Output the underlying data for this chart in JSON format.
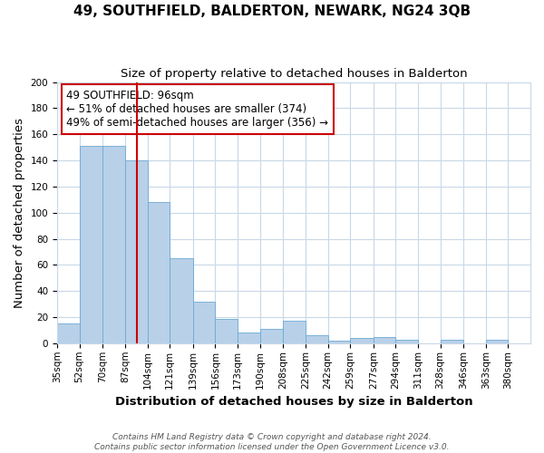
{
  "title": "49, SOUTHFIELD, BALDERTON, NEWARK, NG24 3QB",
  "subtitle": "Size of property relative to detached houses in Balderton",
  "xlabel": "Distribution of detached houses by size in Balderton",
  "ylabel": "Number of detached properties",
  "bar_values": [
    15,
    151,
    151,
    140,
    108,
    65,
    32,
    19,
    8,
    11,
    17,
    6,
    2,
    4,
    5,
    3,
    0,
    3,
    0,
    3
  ],
  "bin_edges": [
    35,
    52,
    70,
    87,
    104,
    121,
    139,
    156,
    173,
    190,
    208,
    225,
    242,
    259,
    277,
    294,
    311,
    328,
    346,
    363,
    380
  ],
  "bin_labels": [
    "35sqm",
    "52sqm",
    "70sqm",
    "87sqm",
    "104sqm",
    "121sqm",
    "139sqm",
    "156sqm",
    "173sqm",
    "190sqm",
    "208sqm",
    "225sqm",
    "242sqm",
    "259sqm",
    "277sqm",
    "294sqm",
    "311sqm",
    "328sqm",
    "346sqm",
    "363sqm",
    "380sqm"
  ],
  "bar_color": "#b8d0e8",
  "bar_edgecolor": "#6aaad4",
  "vline_x": 96,
  "vline_color": "#cc0000",
  "annotation_text": "49 SOUTHFIELD: 96sqm\n← 51% of detached houses are smaller (374)\n49% of semi-detached houses are larger (356) →",
  "annotation_box_edgecolor": "#cc0000",
  "annotation_box_facecolor": "#ffffff",
  "ylim": [
    0,
    200
  ],
  "yticks": [
    0,
    20,
    40,
    60,
    80,
    100,
    120,
    140,
    160,
    180,
    200
  ],
  "footer_line1": "Contains HM Land Registry data © Crown copyright and database right 2024.",
  "footer_line2": "Contains public sector information licensed under the Open Government Licence v3.0.",
  "bg_color": "#ffffff",
  "grid_color": "#c8d8e8",
  "title_fontsize": 11,
  "subtitle_fontsize": 9.5,
  "axis_label_fontsize": 9.5,
  "tick_fontsize": 7.5,
  "annotation_fontsize": 8.5,
  "footer_fontsize": 6.5
}
